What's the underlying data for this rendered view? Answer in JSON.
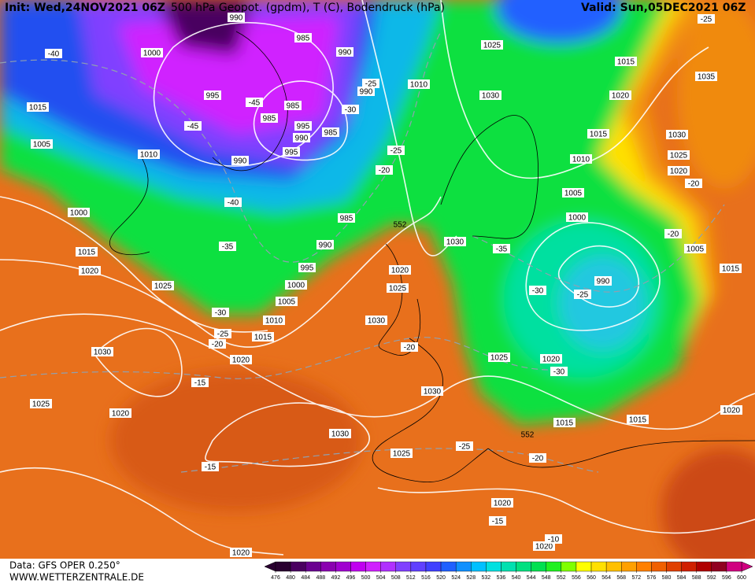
{
  "header": {
    "init": "Init: Wed,24NOV2021 06Z",
    "title": "500 hPa Geopot. (gpdm), T (C), Bodendruck (hPa)",
    "valid": "Valid: Sun,05DEC2021 06Z"
  },
  "map": {
    "pressure_labels": [
      "990",
      "985",
      "1000",
      "990",
      "1015",
      "1025",
      "1035",
      "1010",
      "990",
      "995",
      "985",
      "1030",
      "1020",
      "1015",
      "985",
      "995",
      "990",
      "985",
      "1005",
      "1010",
      "990",
      "995",
      "1015",
      "1030",
      "1025",
      "1010",
      "1020",
      "1005",
      "1000",
      "1000",
      "985",
      "1030",
      "990",
      "1015",
      "1005",
      "1020",
      "995",
      "1020",
      "1015",
      "990",
      "1000",
      "1025",
      "1025",
      "1005",
      "1030",
      "1010",
      "1015",
      "1030",
      "1020",
      "1025",
      "1020",
      "1025",
      "1030",
      "1020",
      "1020",
      "1015",
      "1015",
      "1030",
      "1025",
      "1020",
      "1020",
      "1020"
    ],
    "temperature_labels": [
      "-40",
      "-45",
      "-45",
      "-30",
      "-25",
      "-25",
      "-20",
      "-40",
      "-35",
      "-35",
      "-30",
      "-25",
      "-30",
      "-25",
      "-20",
      "-20",
      "-30",
      "-15",
      "-25",
      "-20",
      "-15",
      "-15",
      "-10",
      "-20",
      "-20",
      "-25"
    ],
    "geopotential_labels": [
      "552",
      "552"
    ]
  },
  "colorbar": {
    "ticks": [
      476,
      480,
      484,
      488,
      492,
      496,
      500,
      504,
      508,
      512,
      516,
      520,
      524,
      528,
      532,
      536,
      540,
      544,
      548,
      552,
      556,
      560,
      564,
      568,
      572,
      576,
      580,
      584,
      588,
      592,
      596,
      600
    ],
    "colors": [
      "#2a0030",
      "#4a0060",
      "#6a0090",
      "#8a00b0",
      "#a000d0",
      "#c000f0",
      "#d020ff",
      "#b030ff",
      "#8040ff",
      "#6040ff",
      "#4040ff",
      "#2060ff",
      "#1090ff",
      "#00c0ff",
      "#00e0e0",
      "#00e0b0",
      "#00e080",
      "#00e050",
      "#20f020",
      "#80ff00",
      "#ffff00",
      "#ffe000",
      "#ffc000",
      "#ffa000",
      "#ff8000",
      "#f06000",
      "#e04000",
      "#d02000",
      "#b00000",
      "#900020",
      "#d00080"
    ]
  },
  "footer": {
    "source": "Data: GFS OPER 0.250°",
    "site": "WWW.WETTERZENTRALE.DE"
  }
}
